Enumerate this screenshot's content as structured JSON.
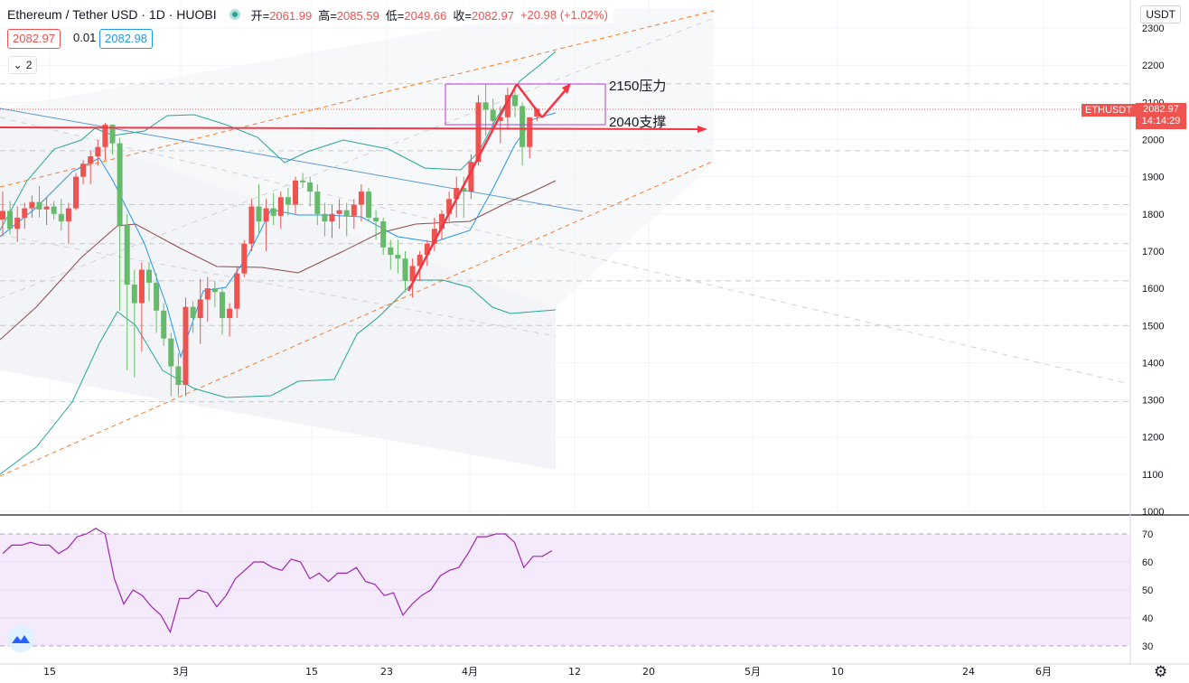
{
  "header": {
    "symbol": "Ethereum / Tether USD · 1D · HUOBI",
    "open_label": "开=",
    "open": "2061.99",
    "high_label": "高=",
    "high": "2085.59",
    "low_label": "低=",
    "low": "2049.66",
    "close_label": "收=",
    "close": "2082.97",
    "change": "+20.98 (+1.02%)"
  },
  "quote": {
    "bid": "2082.97",
    "spread": "0.01",
    "ask": "2082.98"
  },
  "collapse_count": "2",
  "currency": "USDT",
  "last_price": {
    "symbol": "ETHUSDT",
    "price": "2082.97",
    "countdown": "14:14:29"
  },
  "annotations": {
    "resistance": "2150压力",
    "support": "2040支撑"
  },
  "colors": {
    "up": "#ef5350",
    "down": "#66bb6a",
    "rsi": "#9c27b0",
    "bb": "#26a69a",
    "ma": "#2196f3",
    "basis": "#8d4a4a",
    "arrow": "#f23645"
  },
  "chart_data": [
    {
      "type": "candlestick",
      "title": "Ethereum / Tether USD · 1D · HUOBI",
      "ylim": [
        1000,
        2300
      ],
      "y_ticks": [
        1000,
        1100,
        1200,
        1300,
        1400,
        1500,
        1600,
        1700,
        1800,
        1900,
        2000,
        2100,
        2200,
        2300
      ],
      "x_tick_labels": [
        "15",
        "3月",
        "15",
        "23",
        "4月",
        "12",
        "20",
        "5月",
        "10",
        "24",
        "6月"
      ],
      "candles": [
        [
          1785,
          1860,
          1740,
          1808
        ],
        [
          1808,
          1835,
          1745,
          1760
        ],
        [
          1760,
          1820,
          1725,
          1790
        ],
        [
          1790,
          1830,
          1760,
          1815
        ],
        [
          1815,
          1850,
          1790,
          1832
        ],
        [
          1832,
          1875,
          1790,
          1812
        ],
        [
          1812,
          1845,
          1770,
          1820
        ],
        [
          1820,
          1835,
          1785,
          1800
        ],
        [
          1800,
          1840,
          1755,
          1780
        ],
        [
          1780,
          1830,
          1720,
          1815
        ],
        [
          1815,
          1910,
          1810,
          1900
        ],
        [
          1900,
          1945,
          1880,
          1935
        ],
        [
          1935,
          1970,
          1880,
          1955
        ],
        [
          1955,
          2000,
          1930,
          1980
        ],
        [
          1980,
          2045,
          1945,
          2040
        ],
        [
          2040,
          2040,
          1960,
          1990
        ],
        [
          1990,
          2005,
          1540,
          1770
        ],
        [
          1770,
          1800,
          1380,
          1610
        ],
        [
          1610,
          1650,
          1360,
          1560
        ],
        [
          1560,
          1670,
          1430,
          1650
        ],
        [
          1650,
          1670,
          1565,
          1615
        ],
        [
          1615,
          1640,
          1480,
          1540
        ],
        [
          1540,
          1560,
          1445,
          1465
        ],
        [
          1465,
          1480,
          1310,
          1390
        ],
        [
          1390,
          1425,
          1310,
          1340
        ],
        [
          1340,
          1575,
          1310,
          1550
        ],
        [
          1550,
          1565,
          1480,
          1520
        ],
        [
          1520,
          1625,
          1450,
          1570
        ],
        [
          1570,
          1630,
          1510,
          1600
        ],
        [
          1600,
          1620,
          1550,
          1590
        ],
        [
          1590,
          1600,
          1475,
          1520
        ],
        [
          1520,
          1560,
          1470,
          1545
        ],
        [
          1545,
          1660,
          1520,
          1640
        ],
        [
          1640,
          1730,
          1630,
          1720
        ],
        [
          1720,
          1840,
          1700,
          1820
        ],
        [
          1820,
          1880,
          1750,
          1780
        ],
        [
          1780,
          1840,
          1700,
          1815
        ],
        [
          1815,
          1855,
          1770,
          1795
        ],
        [
          1795,
          1860,
          1760,
          1845
        ],
        [
          1845,
          1870,
          1795,
          1825
        ],
        [
          1825,
          1900,
          1800,
          1890
        ],
        [
          1890,
          1910,
          1870,
          1885
        ],
        [
          1885,
          1900,
          1820,
          1860
        ],
        [
          1860,
          1880,
          1770,
          1800
        ],
        [
          1800,
          1830,
          1740,
          1780
        ],
        [
          1780,
          1825,
          1735,
          1800
        ],
        [
          1800,
          1840,
          1760,
          1810
        ],
        [
          1810,
          1830,
          1740,
          1795
        ],
        [
          1795,
          1840,
          1760,
          1825
        ],
        [
          1825,
          1880,
          1780,
          1860
        ],
        [
          1860,
          1870,
          1780,
          1790
        ],
        [
          1790,
          1810,
          1730,
          1780
        ],
        [
          1780,
          1790,
          1690,
          1710
        ],
        [
          1710,
          1730,
          1650,
          1690
        ],
        [
          1690,
          1730,
          1640,
          1680
        ],
        [
          1680,
          1700,
          1590,
          1620
        ],
        [
          1620,
          1680,
          1575,
          1660
        ],
        [
          1660,
          1700,
          1620,
          1690
        ],
        [
          1690,
          1730,
          1660,
          1720
        ],
        [
          1720,
          1790,
          1700,
          1760
        ],
        [
          1760,
          1810,
          1730,
          1800
        ],
        [
          1800,
          1860,
          1780,
          1840
        ],
        [
          1840,
          1900,
          1790,
          1870
        ],
        [
          1870,
          1900,
          1790,
          1860
        ],
        [
          1860,
          1960,
          1840,
          1940
        ],
        [
          1940,
          2120,
          1930,
          2100
        ],
        [
          2100,
          2150,
          2010,
          2080
        ],
        [
          2080,
          2110,
          2020,
          2050
        ],
        [
          2050,
          2090,
          1990,
          2060
        ],
        [
          2060,
          2140,
          2030,
          2120
        ],
        [
          2120,
          2140,
          2060,
          2090
        ],
        [
          2090,
          2100,
          1930,
          1980
        ],
        [
          1980,
          2060,
          1950,
          2060
        ],
        [
          2061.99,
          2085.59,
          2049.66,
          2082.97
        ]
      ],
      "current_price": 2082.97,
      "resistance_level": 2150,
      "support_level": 2040
    },
    {
      "type": "line",
      "title": "RSI",
      "ylim": [
        27,
        72
      ],
      "y_ticks": [
        30,
        40,
        50,
        60,
        70
      ],
      "band": [
        30,
        70
      ],
      "values": [
        63,
        66,
        66,
        67,
        66,
        66,
        63,
        65,
        69,
        70,
        72,
        70,
        54,
        45,
        50,
        48,
        44,
        41,
        35,
        47,
        47,
        50,
        49,
        44,
        48,
        54,
        57,
        60,
        60,
        58,
        57,
        61,
        60,
        54,
        56,
        53,
        56,
        56,
        58,
        53,
        52,
        48,
        49,
        41,
        45,
        48,
        50,
        55,
        57,
        58,
        63,
        69,
        69,
        70,
        70,
        67,
        58,
        62,
        62,
        64
      ]
    }
  ]
}
